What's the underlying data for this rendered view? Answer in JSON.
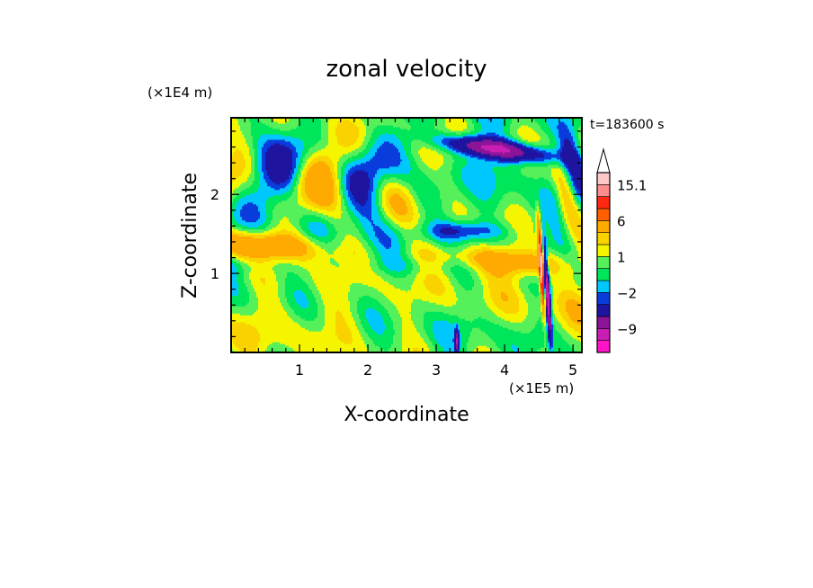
{
  "chart_data": {
    "type": "heatmap",
    "title": "zonal velocity",
    "xlabel": "X-coordinate",
    "ylabel": "Z-coordinate",
    "x_unit": "(×1E5 m)",
    "y_unit": "(×1E4 m)",
    "time_label": "t=183600 s",
    "xlim": [
      0,
      5.13
    ],
    "ylim": [
      0,
      2.97
    ],
    "x_ticks": [
      1,
      2,
      3,
      4,
      5
    ],
    "y_ticks": [
      1,
      2
    ],
    "colorbar": {
      "levels": [
        -15,
        -12,
        -9,
        -6,
        -3,
        -2,
        -1,
        0,
        1,
        2,
        3,
        6,
        9,
        12,
        15.1
      ],
      "colors": [
        "#ff14c8",
        "#c81eb4",
        "#8c1496",
        "#1e14a0",
        "#0a3cdc",
        "#00c8ff",
        "#00e65a",
        "#55f05a",
        "#f5f500",
        "#fad200",
        "#ffaa00",
        "#ff5f00",
        "#ff2814",
        "#ff8c8c",
        "#ffc8c8"
      ],
      "labels": [
        "15.1",
        "6",
        "1",
        "−2",
        "−9"
      ],
      "label_values": [
        15.1,
        6,
        1,
        -2,
        -9
      ],
      "extend": "max"
    }
  }
}
